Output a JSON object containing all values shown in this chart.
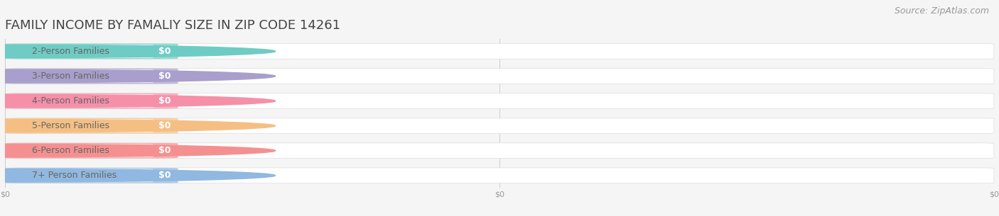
{
  "title": "FAMILY INCOME BY FAMALIY SIZE IN ZIP CODE 14261",
  "source_text": "Source: ZipAtlas.com",
  "categories": [
    "2-Person Families",
    "3-Person Families",
    "4-Person Families",
    "5-Person Families",
    "6-Person Families",
    "7+ Person Families"
  ],
  "values": [
    0,
    0,
    0,
    0,
    0,
    0
  ],
  "bar_colors": [
    "#6eccc4",
    "#a89fcc",
    "#f590a8",
    "#f5bf84",
    "#f59090",
    "#90b8e0"
  ],
  "background_color": "#f5f5f5",
  "bar_bg_color": "#e8e8ee",
  "bar_white_color": "#ffffff",
  "label_color": "#666666",
  "value_label_color": "#ffffff",
  "title_color": "#444444",
  "source_color": "#999999",
  "xtick_labels": [
    "$0",
    "$0",
    "$0"
  ],
  "xtick_positions": [
    0.0,
    0.5,
    1.0
  ],
  "label_fontsize": 9,
  "title_fontsize": 13,
  "source_fontsize": 9
}
